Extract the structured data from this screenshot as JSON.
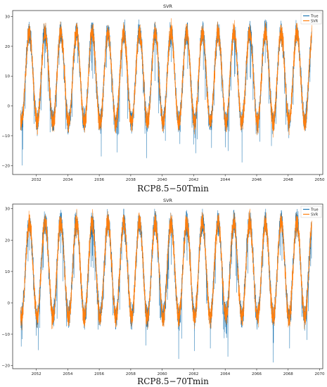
{
  "colors": {
    "true_series": "#1f77b4",
    "svr_series": "#ff7f0e"
  },
  "chart_data": [
    {
      "type": "line",
      "title": "SVR",
      "caption": "RCP8.5−50Tmin",
      "xlabel": "",
      "ylabel": "",
      "xlim": [
        2030.5,
        2050.2
      ],
      "ylim": [
        -23,
        32
      ],
      "xticks": [
        "2032",
        "2034",
        "2036",
        "2038",
        "2040",
        "2042",
        "2044",
        "2046",
        "2048",
        "2050"
      ],
      "yticks": [
        "30",
        "20",
        "10",
        "0",
        "−10",
        "−20"
      ],
      "legend": "top-right",
      "grid": false,
      "x_range": [
        2031.0,
        2049.5
      ],
      "seasonal_cycle": {
        "peak_approx": 26,
        "trough_approx": -7,
        "extreme_min_approx": -21,
        "period_years": 1
      },
      "series": [
        {
          "name": "True",
          "color": "#1f77b4"
        },
        {
          "name": "SVR",
          "color": "#ff7f0e"
        }
      ]
    },
    {
      "type": "line",
      "title": "SVR",
      "caption": "RCP8.5−70Tmin",
      "xlabel": "",
      "ylabel": "",
      "xlim": [
        2050.5,
        2070.2
      ],
      "ylim": [
        -21,
        31.5
      ],
      "xticks": [
        "2052",
        "2054",
        "2056",
        "2058",
        "2060",
        "2062",
        "2064",
        "2066",
        "2068",
        "2070"
      ],
      "yticks": [
        "30",
        "20",
        "10",
        "0",
        "−10",
        "−20"
      ],
      "legend": "top-right",
      "grid": false,
      "x_range": [
        2051.0,
        2069.5
      ],
      "seasonal_cycle": {
        "peak_approx": 27,
        "trough_approx": -6,
        "extreme_min_approx": -19,
        "period_years": 1
      },
      "series": [
        {
          "name": "True",
          "color": "#1f77b4"
        },
        {
          "name": "SVR",
          "color": "#ff7f0e"
        }
      ]
    }
  ]
}
